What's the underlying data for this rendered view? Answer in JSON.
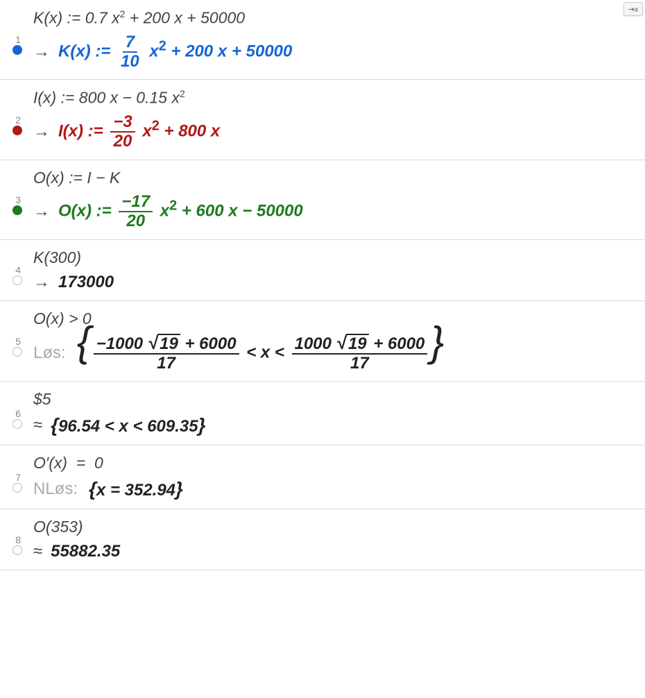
{
  "corner_badge": "⇥x",
  "rows": [
    {
      "num": "1",
      "dot_filled": true,
      "dot_color": "#1565d8",
      "input_html": "K(x) := 0.7 x<sup>2</sup> + 200 x + 50000",
      "out_prefix": "→",
      "out_color": "#1565d8",
      "out_html": "K(x)&nbsp;:=&nbsp;<span class='frac'><span class='n'>7</span><span class='d'>10</span></span>&nbsp;x<sup>2</sup> + 200 x + 50000"
    },
    {
      "num": "2",
      "dot_filled": true,
      "dot_color": "#b01818",
      "input_html": "I(x) := 800 x − 0.15 x<sup>2</sup>",
      "out_prefix": "→",
      "out_color": "#b01818",
      "out_html": "I(x)&nbsp;:=&nbsp;<span class='frac'><span class='n'>−3</span><span class='d'>20</span></span>&nbsp;x<sup>2</sup> + 800 x"
    },
    {
      "num": "3",
      "dot_filled": true,
      "dot_color": "#1e7a1e",
      "input_html": "O(x) := I − K",
      "out_prefix": "→",
      "out_color": "#1e7a1e",
      "out_html": "O(x)&nbsp;:=&nbsp;<span class='frac'><span class='n'>−17</span><span class='d'>20</span></span>&nbsp;x<sup>2</sup> + 600 x − 50000"
    },
    {
      "num": "4",
      "dot_filled": false,
      "input_html": "K(300)",
      "out_prefix": "→",
      "out_color": "#222",
      "out_html": "173000"
    },
    {
      "num": "5",
      "dot_filled": false,
      "input_html": "O(x) &gt; 0",
      "out_prefix_label": "Løs:",
      "out_color": "#222",
      "out_html": "<span class='brace-l'>{</span><span class='frac bigfrac'><span class='n'>−1000 <span class='sqrt'><span class='sqrt-sym'>√</span><span class='sqrt-arg'>19</span></span> + 6000</span><span class='d'>17</span></span> &lt; x &lt; <span class='frac bigfrac'><span class='n'>1000 <span class='sqrt'><span class='sqrt-sym'>√</span><span class='sqrt-arg'>19</span></span> + 6000</span><span class='d'>17</span></span><span class='brace-r'>}</span>"
    },
    {
      "num": "6",
      "dot_filled": false,
      "input_html": "$5",
      "out_prefix": "≈",
      "out_color": "#222",
      "out_html": "<span class='brace-sm-l'>{</span>96.54 &lt; x &lt; 609.35<span class='brace-sm-r'>}</span>"
    },
    {
      "num": "7",
      "dot_filled": false,
      "input_html": "O′(x) &nbsp;=&nbsp; 0",
      "out_prefix_label": "NLøs:",
      "out_color": "#222",
      "out_html": "<span class='brace-sm-l'>{</span>x = 352.94<span class='brace-sm-r'>}</span>"
    },
    {
      "num": "8",
      "dot_filled": false,
      "input_html": "O(353)",
      "out_prefix": "≈",
      "out_color": "#222",
      "out_html": "55882.35"
    }
  ]
}
